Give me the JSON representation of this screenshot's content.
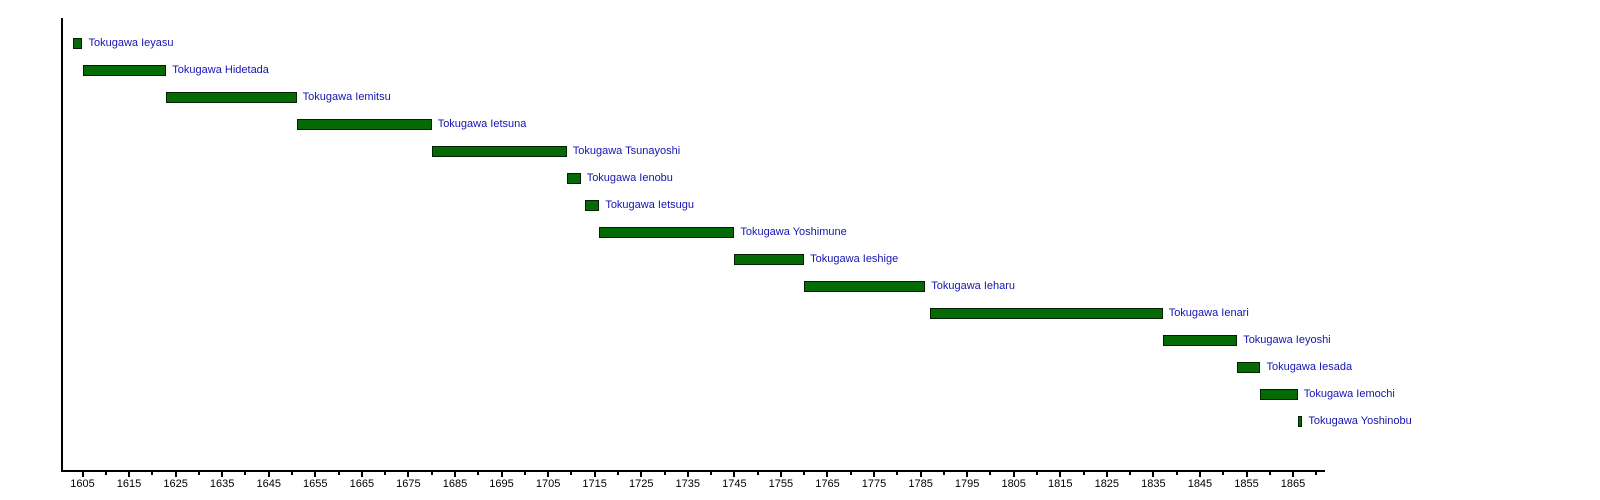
{
  "chart_data": {
    "type": "bar",
    "subtype": "gantt-timeline",
    "orientation": "horizontal",
    "grid": false,
    "legend": "none",
    "x_axis": {
      "min": 1600.5,
      "max": 1871.5,
      "major_ticks": [
        1605,
        1615,
        1625,
        1635,
        1645,
        1655,
        1665,
        1675,
        1685,
        1695,
        1705,
        1715,
        1725,
        1735,
        1745,
        1755,
        1765,
        1775,
        1785,
        1795,
        1805,
        1815,
        1825,
        1835,
        1845,
        1855,
        1865
      ],
      "minor_ticks": [
        1610,
        1620,
        1630,
        1640,
        1650,
        1660,
        1670,
        1680,
        1690,
        1700,
        1710,
        1720,
        1730,
        1740,
        1750,
        1760,
        1770,
        1780,
        1790,
        1800,
        1810,
        1820,
        1830,
        1840,
        1850,
        1860,
        1870
      ]
    },
    "bars": [
      {
        "label": "Tokugawa Ieyasu",
        "start": 1603,
        "end": 1605
      },
      {
        "label": "Tokugawa Hidetada",
        "start": 1605,
        "end": 1623
      },
      {
        "label": "Tokugawa Iemitsu",
        "start": 1623,
        "end": 1651
      },
      {
        "label": "Tokugawa Ietsuna",
        "start": 1651,
        "end": 1680
      },
      {
        "label": "Tokugawa Tsunayoshi",
        "start": 1680,
        "end": 1709
      },
      {
        "label": "Tokugawa Ienobu",
        "start": 1709,
        "end": 1712
      },
      {
        "label": "Tokugawa Ietsugu",
        "start": 1713,
        "end": 1716
      },
      {
        "label": "Tokugawa Yoshimune",
        "start": 1716,
        "end": 1745
      },
      {
        "label": "Tokugawa Ieshige",
        "start": 1745,
        "end": 1760
      },
      {
        "label": "Tokugawa Ieharu",
        "start": 1760,
        "end": 1786
      },
      {
        "label": "Tokugawa Ienari",
        "start": 1787,
        "end": 1837
      },
      {
        "label": "Tokugawa Ieyoshi",
        "start": 1837,
        "end": 1853
      },
      {
        "label": "Tokugawa Iesada",
        "start": 1853,
        "end": 1858
      },
      {
        "label": "Tokugawa Iemochi",
        "start": 1858,
        "end": 1866
      },
      {
        "label": "Tokugawa Yoshinobu",
        "start": 1866,
        "end": 1867
      }
    ],
    "colors": {
      "bar_fill": "#046a04",
      "bar_border": "#002000",
      "bar_label_text": "#1515b0",
      "axis": "#000000",
      "tick_label_text": "#000000",
      "background": "#ffffff"
    }
  }
}
